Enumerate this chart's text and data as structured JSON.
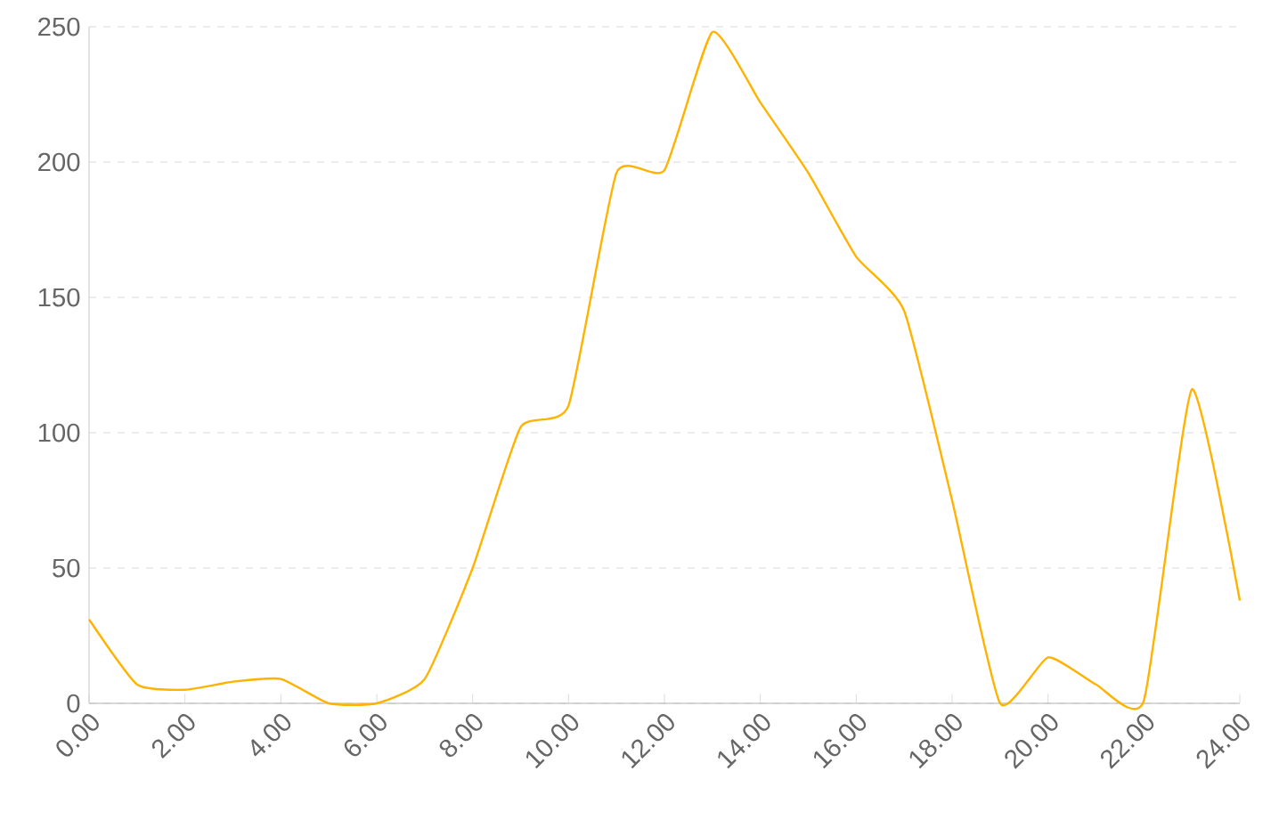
{
  "chart_data": {
    "type": "line",
    "color": "#ffb300",
    "x": [
      0,
      1,
      2,
      3,
      4,
      5,
      6,
      7,
      8,
      9,
      10,
      11,
      12,
      13,
      14,
      15,
      16,
      17,
      18,
      19,
      20,
      21,
      22,
      23,
      24
    ],
    "values": [
      31,
      7,
      5,
      8,
      9,
      0,
      0,
      9,
      50,
      102,
      110,
      196,
      197,
      248,
      222,
      196,
      165,
      145,
      75,
      0,
      17,
      7,
      1,
      116,
      38
    ],
    "xlim": [
      0,
      24
    ],
    "ylim": [
      0,
      250
    ],
    "xticks": [
      {
        "value": 0,
        "label": "0.00"
      },
      {
        "value": 2,
        "label": "2.00"
      },
      {
        "value": 4,
        "label": "4.00"
      },
      {
        "value": 6,
        "label": "6.00"
      },
      {
        "value": 8,
        "label": "8.00"
      },
      {
        "value": 10,
        "label": "10.00"
      },
      {
        "value": 12,
        "label": "12.00"
      },
      {
        "value": 14,
        "label": "14.00"
      },
      {
        "value": 16,
        "label": "16.00"
      },
      {
        "value": 18,
        "label": "18.00"
      },
      {
        "value": 20,
        "label": "20.00"
      },
      {
        "value": 22,
        "label": "22.00"
      },
      {
        "value": 24,
        "label": "24.00"
      }
    ],
    "yticks": [
      0,
      50,
      100,
      150,
      200,
      250
    ],
    "grid": "y",
    "marker": "none",
    "line_style": "solid"
  }
}
